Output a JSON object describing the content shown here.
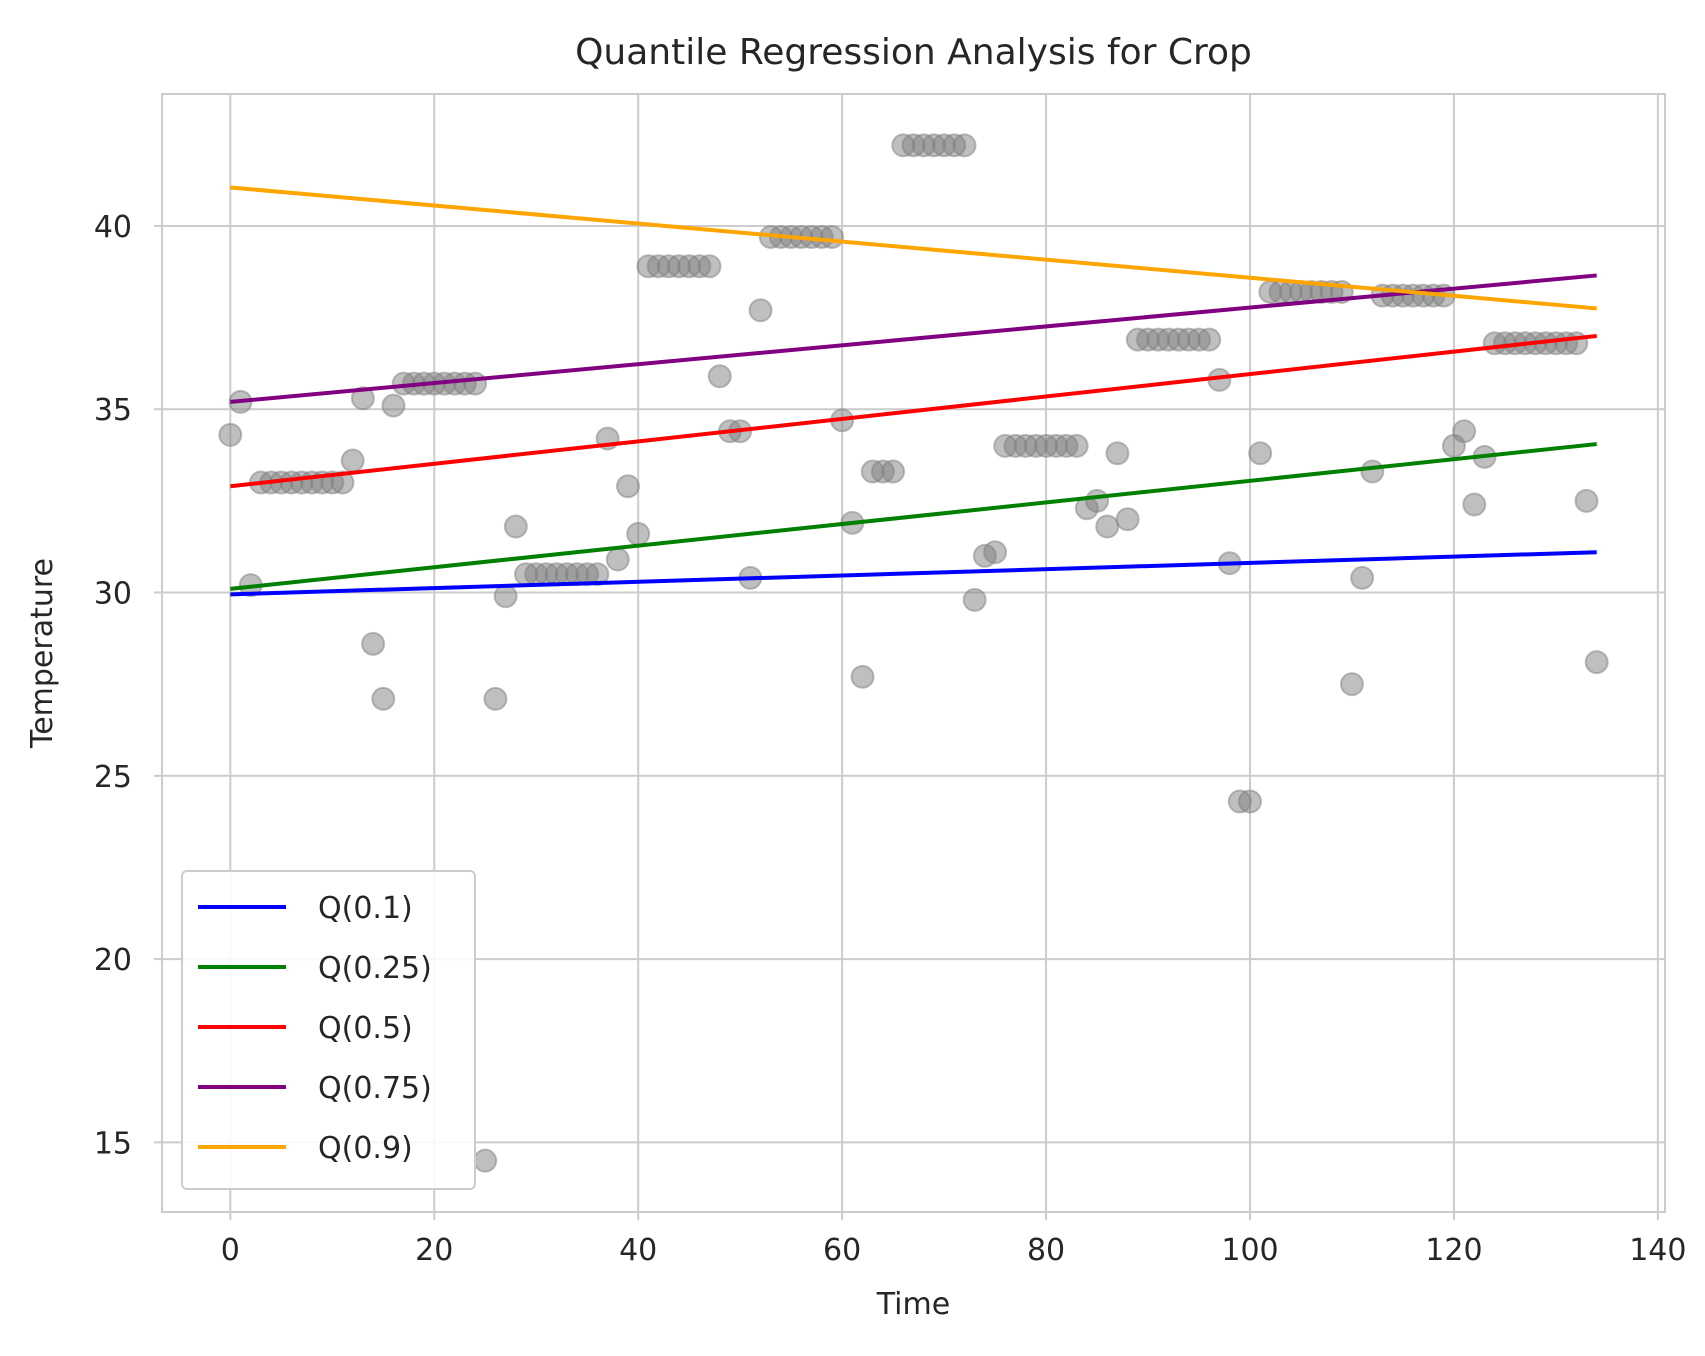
{
  "chart_data": {
    "type": "scatter",
    "title": "Quantile Regression Analysis for Crop",
    "xlabel": "Time",
    "ylabel": "Temperature",
    "xlim": [
      -6.7,
      140.7
    ],
    "ylim": [
      13.1,
      43.6
    ],
    "xticks": [
      0,
      20,
      40,
      60,
      80,
      100,
      120,
      140
    ],
    "yticks": [
      15,
      20,
      25,
      30,
      35,
      40
    ],
    "grid": true,
    "legend_position": "lower-left",
    "scatter": {
      "color": "#808080",
      "points": [
        [
          0,
          34.3
        ],
        [
          1,
          35.2
        ],
        [
          2,
          30.2
        ],
        [
          3,
          33.0
        ],
        [
          4,
          33.0
        ],
        [
          5,
          33.0
        ],
        [
          6,
          33.0
        ],
        [
          7,
          33.0
        ],
        [
          8,
          33.0
        ],
        [
          9,
          33.0
        ],
        [
          10,
          33.0
        ],
        [
          11,
          33.0
        ],
        [
          12,
          33.6
        ],
        [
          13,
          35.3
        ],
        [
          14,
          28.6
        ],
        [
          15,
          27.1
        ],
        [
          16,
          35.1
        ],
        [
          17,
          35.7
        ],
        [
          18,
          35.7
        ],
        [
          19,
          35.7
        ],
        [
          20,
          35.7
        ],
        [
          21,
          35.7
        ],
        [
          22,
          35.7
        ],
        [
          23,
          35.7
        ],
        [
          24,
          35.7
        ],
        [
          25,
          14.5
        ],
        [
          26,
          27.1
        ],
        [
          27,
          29.9
        ],
        [
          28,
          31.8
        ],
        [
          29,
          30.5
        ],
        [
          30,
          30.5
        ],
        [
          31,
          30.5
        ],
        [
          32,
          30.5
        ],
        [
          33,
          30.5
        ],
        [
          34,
          30.5
        ],
        [
          35,
          30.5
        ],
        [
          36,
          30.5
        ],
        [
          37,
          34.2
        ],
        [
          38,
          30.9
        ],
        [
          39,
          32.9
        ],
        [
          40,
          31.6
        ],
        [
          41,
          38.9
        ],
        [
          42,
          38.9
        ],
        [
          43,
          38.9
        ],
        [
          44,
          38.9
        ],
        [
          45,
          38.9
        ],
        [
          46,
          38.9
        ],
        [
          47,
          38.9
        ],
        [
          48,
          35.9
        ],
        [
          49,
          34.4
        ],
        [
          50,
          34.4
        ],
        [
          51,
          30.4
        ],
        [
          52,
          37.7
        ],
        [
          53,
          39.7
        ],
        [
          54,
          39.7
        ],
        [
          55,
          39.7
        ],
        [
          56,
          39.7
        ],
        [
          57,
          39.7
        ],
        [
          58,
          39.7
        ],
        [
          59,
          39.7
        ],
        [
          60,
          34.7
        ],
        [
          61,
          31.9
        ],
        [
          62,
          27.7
        ],
        [
          63,
          33.3
        ],
        [
          64,
          33.3
        ],
        [
          65,
          33.3
        ],
        [
          66,
          42.2
        ],
        [
          67,
          42.2
        ],
        [
          68,
          42.2
        ],
        [
          69,
          42.2
        ],
        [
          70,
          42.2
        ],
        [
          71,
          42.2
        ],
        [
          72,
          42.2
        ],
        [
          73,
          29.8
        ],
        [
          74,
          31.0
        ],
        [
          75,
          31.1
        ],
        [
          76,
          34.0
        ],
        [
          77,
          34.0
        ],
        [
          78,
          34.0
        ],
        [
          79,
          34.0
        ],
        [
          80,
          34.0
        ],
        [
          81,
          34.0
        ],
        [
          82,
          34.0
        ],
        [
          83,
          34.0
        ],
        [
          84,
          32.3
        ],
        [
          85,
          32.5
        ],
        [
          86,
          31.8
        ],
        [
          87,
          33.8
        ],
        [
          88,
          32.0
        ],
        [
          89,
          36.9
        ],
        [
          90,
          36.9
        ],
        [
          91,
          36.9
        ],
        [
          92,
          36.9
        ],
        [
          93,
          36.9
        ],
        [
          94,
          36.9
        ],
        [
          95,
          36.9
        ],
        [
          96,
          36.9
        ],
        [
          97,
          35.8
        ],
        [
          98,
          30.8
        ],
        [
          99,
          24.3
        ],
        [
          100,
          24.3
        ],
        [
          101,
          33.8
        ],
        [
          102,
          38.2
        ],
        [
          103,
          38.2
        ],
        [
          104,
          38.2
        ],
        [
          105,
          38.2
        ],
        [
          106,
          38.2
        ],
        [
          107,
          38.2
        ],
        [
          108,
          38.2
        ],
        [
          109,
          38.2
        ],
        [
          110,
          27.5
        ],
        [
          111,
          30.4
        ],
        [
          112,
          33.3
        ],
        [
          113,
          38.1
        ],
        [
          114,
          38.1
        ],
        [
          115,
          38.1
        ],
        [
          116,
          38.1
        ],
        [
          117,
          38.1
        ],
        [
          118,
          38.1
        ],
        [
          119,
          38.1
        ],
        [
          120,
          34.0
        ],
        [
          121,
          34.4
        ],
        [
          122,
          32.4
        ],
        [
          123,
          33.7
        ],
        [
          124,
          36.8
        ],
        [
          125,
          36.8
        ],
        [
          126,
          36.8
        ],
        [
          127,
          36.8
        ],
        [
          128,
          36.8
        ],
        [
          129,
          36.8
        ],
        [
          130,
          36.8
        ],
        [
          131,
          36.8
        ],
        [
          132,
          36.8
        ],
        [
          133,
          32.5
        ],
        [
          134,
          28.1
        ]
      ]
    },
    "series": [
      {
        "name": "Q(0.1)",
        "color": "#0000ff",
        "x": [
          0,
          134
        ],
        "y": [
          29.95,
          31.1
        ]
      },
      {
        "name": "Q(0.25)",
        "color": "#008000",
        "x": [
          0,
          134
        ],
        "y": [
          30.1,
          34.05
        ]
      },
      {
        "name": "Q(0.5)",
        "color": "#ff0000",
        "x": [
          0,
          134
        ],
        "y": [
          32.9,
          37.0
        ]
      },
      {
        "name": "Q(0.75)",
        "color": "#800080",
        "x": [
          0,
          134
        ],
        "y": [
          35.2,
          38.65
        ]
      },
      {
        "name": "Q(0.9)",
        "color": "#ffa500",
        "x": [
          0,
          134
        ],
        "y": [
          41.05,
          37.75
        ]
      }
    ]
  }
}
